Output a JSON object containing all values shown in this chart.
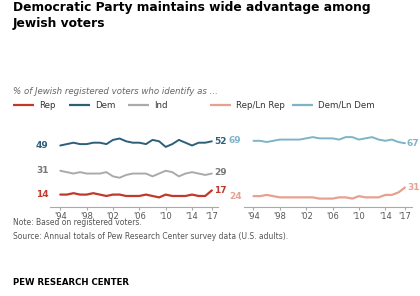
{
  "title": "Democratic Party maintains wide advantage among\nJewish voters",
  "subtitle": "% of Jewish registered voters who identify as ...",
  "years": [
    1994,
    1995,
    1996,
    1997,
    1998,
    1999,
    2000,
    2001,
    2002,
    2003,
    2004,
    2005,
    2006,
    2007,
    2008,
    2009,
    2010,
    2011,
    2012,
    2013,
    2014,
    2015,
    2016,
    2017
  ],
  "rep": [
    14,
    14,
    15,
    14,
    14,
    15,
    14,
    13,
    14,
    14,
    13,
    13,
    13,
    14,
    13,
    12,
    14,
    13,
    13,
    13,
    14,
    13,
    13,
    17
  ],
  "dem": [
    49,
    50,
    51,
    50,
    50,
    51,
    51,
    50,
    53,
    54,
    52,
    51,
    51,
    50,
    53,
    52,
    48,
    50,
    53,
    51,
    49,
    51,
    51,
    52
  ],
  "ind": [
    31,
    30,
    29,
    30,
    29,
    29,
    29,
    30,
    27,
    26,
    28,
    29,
    29,
    29,
    27,
    29,
    31,
    30,
    27,
    29,
    30,
    29,
    28,
    29
  ],
  "rep_ln": [
    24,
    24,
    25,
    24,
    23,
    23,
    23,
    23,
    23,
    23,
    22,
    22,
    22,
    23,
    23,
    22,
    24,
    23,
    23,
    23,
    25,
    25,
    27,
    31
  ],
  "dem_ln": [
    69,
    69,
    68,
    69,
    70,
    70,
    70,
    70,
    71,
    72,
    71,
    71,
    71,
    70,
    72,
    72,
    70,
    71,
    72,
    70,
    69,
    70,
    68,
    67
  ],
  "rep_color": "#c0392b",
  "dem_color": "#2c5f7a",
  "ind_color": "#aaaaaa",
  "rep_ln_color": "#e8a090",
  "dem_ln_color": "#7fb3c8",
  "note": "Note: Based on registered voters.",
  "source": "Source: Annual totals of Pew Research Center survey data (U.S. adults).",
  "footer": "PEW RESEARCH CENTER",
  "left_start_labels": {
    "rep": 14,
    "dem": 49,
    "ind": 31
  },
  "right_end_labels": {
    "rep": 17,
    "dem": 52,
    "ind": 29
  },
  "left_start_labels2": {
    "rep_ln": 24,
    "dem_ln": 69
  },
  "right_end_labels2": {
    "rep_ln": 31,
    "dem_ln": 67
  }
}
